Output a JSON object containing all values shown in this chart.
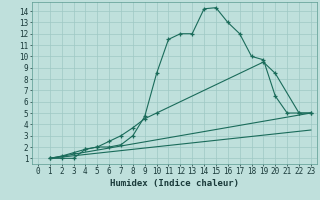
{
  "xlabel": "Humidex (Indice chaleur)",
  "xlim": [
    -0.5,
    23.5
  ],
  "ylim": [
    0.5,
    14.8
  ],
  "xticks": [
    0,
    1,
    2,
    3,
    4,
    5,
    6,
    7,
    8,
    9,
    10,
    11,
    12,
    13,
    14,
    15,
    16,
    17,
    18,
    19,
    20,
    21,
    22,
    23
  ],
  "yticks": [
    1,
    2,
    3,
    4,
    5,
    6,
    7,
    8,
    9,
    10,
    11,
    12,
    13,
    14
  ],
  "bg_color": "#bfe0dc",
  "grid_color": "#9ec8c4",
  "line_color": "#1a6b5a",
  "lines": [
    {
      "x": [
        1,
        2,
        3,
        4,
        5,
        6,
        7,
        8,
        9,
        10,
        11,
        12,
        13,
        14,
        15,
        16,
        17,
        18,
        19,
        20,
        21,
        22,
        23
      ],
      "y": [
        1,
        1,
        1,
        1.8,
        2,
        2,
        2.2,
        3,
        4.7,
        8.5,
        11.5,
        12,
        12,
        14.2,
        14.3,
        13,
        12,
        10,
        9.7,
        6.5,
        5,
        5,
        5
      ],
      "marker": "+"
    },
    {
      "x": [
        1,
        2,
        3,
        4,
        5,
        6,
        7,
        8,
        9,
        10,
        19,
        20,
        22,
        23
      ],
      "y": [
        1,
        1.2,
        1.5,
        1.8,
        2,
        2.5,
        3,
        3.7,
        4.5,
        5,
        9.5,
        8.5,
        5,
        5
      ],
      "marker": "+"
    },
    {
      "x": [
        1,
        23
      ],
      "y": [
        1,
        5
      ],
      "marker": null
    },
    {
      "x": [
        1,
        23
      ],
      "y": [
        1,
        3.5
      ],
      "marker": null
    }
  ]
}
